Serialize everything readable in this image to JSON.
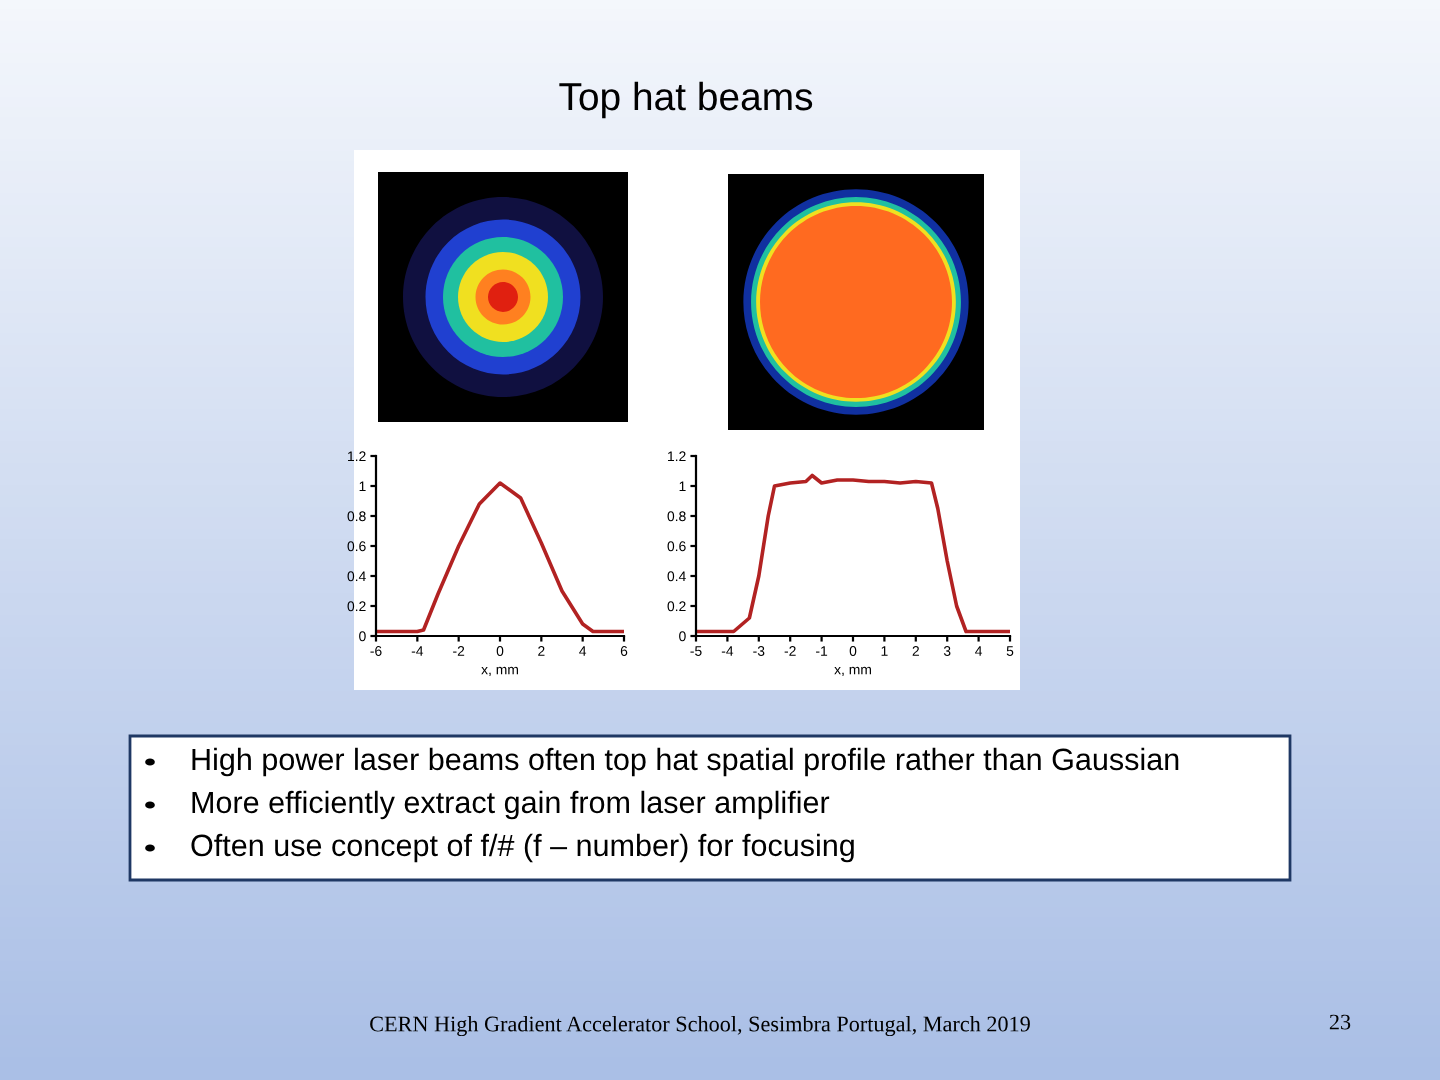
{
  "chart_data": [
    {
      "type": "line",
      "title": "Top hat beams",
      "xlabel": "x, mm",
      "x": [
        -6,
        -4,
        -3.7,
        -3,
        -2,
        -1,
        0,
        1,
        2,
        3,
        4,
        4.5,
        6
      ],
      "series": [
        {
          "color": "#b22222",
          "values": [
            0.03,
            0.03,
            0.04,
            0.28,
            0.6,
            0.88,
            1.02,
            0.92,
            0.62,
            0.3,
            0.08,
            0.03,
            0.03
          ]
        }
      ],
      "xlim": [
        -6,
        6
      ],
      "xticks": [
        -6,
        -4,
        -2,
        0,
        2,
        4,
        6
      ],
      "ylim": [
        0,
        1.2
      ],
      "yticks": [
        0,
        0.2,
        0.4,
        0.6,
        0.8,
        1,
        1.2
      ],
      "grid": false,
      "marker": "none",
      "line_style": "solid",
      "annotations": [
        "High power laser beams often top hat spatial profile rather than Gaussian",
        "More efficiently extract gain from laser amplifier",
        "Often use concept of f/# (f – number) for focusing",
        "CERN High Gradient Accelerator School, Sesimbra Portugal, March 2019",
        "23"
      ]
    },
    {
      "type": "line",
      "xlabel": "x, mm",
      "x": [
        -5,
        -3.8,
        -3.3,
        -3,
        -2.7,
        -2.5,
        -2,
        -1.5,
        -1.3,
        -1,
        -0.5,
        0,
        0.5,
        1,
        1.5,
        2,
        2.5,
        2.7,
        3,
        3.3,
        3.6,
        5
      ],
      "series": [
        {
          "color": "#b22222",
          "values": [
            0.03,
            0.03,
            0.12,
            0.4,
            0.8,
            1.0,
            1.02,
            1.03,
            1.07,
            1.02,
            1.04,
            1.04,
            1.03,
            1.03,
            1.02,
            1.03,
            1.02,
            0.85,
            0.5,
            0.2,
            0.03,
            0.03
          ]
        }
      ],
      "xlim": [
        -5,
        5
      ],
      "xticks": [
        -5,
        -4,
        -3,
        -2,
        -1,
        0,
        1,
        2,
        3,
        4,
        5
      ],
      "ylim": [
        0,
        1.2
      ],
      "yticks": [
        0,
        0.2,
        0.4,
        0.6,
        0.8,
        1,
        1.2
      ],
      "grid": false,
      "marker": "none",
      "line_style": "solid"
    }
  ]
}
